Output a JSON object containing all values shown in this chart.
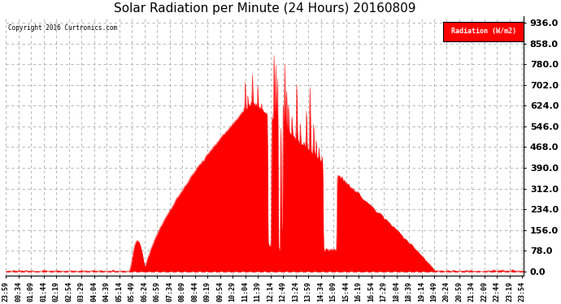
{
  "title": "Solar Radiation per Minute (24 Hours) 20160809",
  "copyright_text": "Copyright 2016 Curtronics.com",
  "legend_label": "Radiation (W/m2)",
  "yticks": [
    0.0,
    78.0,
    156.0,
    234.0,
    312.0,
    390.0,
    468.0,
    546.0,
    624.0,
    702.0,
    780.0,
    858.0,
    936.0
  ],
  "ymax": 960,
  "ymin": -15,
  "fill_color": "#FF0000",
  "line_color": "#FF0000",
  "background_color": "#FFFFFF",
  "grid_color": "#AAAAAA",
  "dashed_zero_color": "#FF0000",
  "title_fontsize": 11,
  "label_fontsize": 6,
  "figsize": [
    6.9,
    3.75
  ],
  "dpi": 100
}
